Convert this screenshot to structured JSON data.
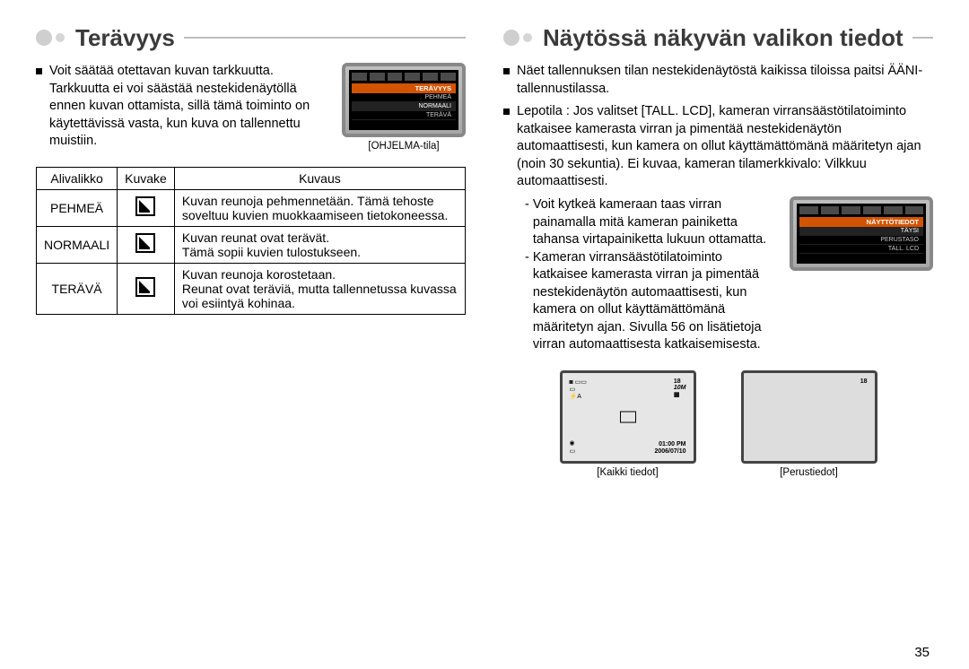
{
  "page_number": "35",
  "left": {
    "heading": "Terävyys",
    "intro": "Voit säätää otettavan kuvan tarkkuutta. Tarkkuutta ei voi säästää nestekidenäytöllä ennen kuvan ottamista, sillä tämä toiminto on käytettävissä vasta, kun kuva on tallennettu muistiin.",
    "lcd_caption": "[OHJELMA-tila]",
    "lcd_menu": {
      "title": "TERÄVYYS",
      "items": [
        "PEHMEÄ",
        "NORMAALI",
        "TERÄVÄ"
      ]
    },
    "table": {
      "headers": [
        "Alivalikko",
        "Kuvake",
        "Kuvaus"
      ],
      "rows": [
        {
          "name": "PEHMEÄ",
          "desc": "Kuvan reunoja pehmennetään. Tämä tehoste soveltuu kuvien muokkaamiseen tietokoneessa."
        },
        {
          "name": "NORMAALI",
          "desc": "Kuvan reunat ovat terävät.\nTämä sopii kuvien tulostukseen."
        },
        {
          "name": "TERÄVÄ",
          "desc": "Kuvan reunoja korostetaan.\nReunat ovat teräviä, mutta tallennetussa kuvassa voi esiintyä kohinaa."
        }
      ]
    }
  },
  "right": {
    "heading": "Näytössä näkyvän valikon tiedot",
    "bullet1": "Näet tallennuksen tilan nestekidenäytöstä kaikissa tiloissa paitsi ÄÄNI-tallennustilassa.",
    "bullet2": "Lepotila : Jos valitset [TALL. LCD], kameran virransäästötilatoiminto katkaisee kamerasta virran ja pimentää nestekidenäytön automaattisesti, kun kamera on ollut käyttämättömänä määritetyn ajan (noin 30 sekuntia). Ei kuvaa, kameran tilamerkkivalo: Vilkkuu automaattisesti.",
    "dash1": "Voit kytkeä kameraan taas virran painamalla mitä kameran painiketta tahansa virtapainiketta lukuun ottamatta.",
    "dash2": "Kameran virransäästötilatoiminto katkaisee kamerasta virran ja pimentää nestekidenäytön automaattisesti, kun kamera on ollut käyttämättömänä määritetyn ajan. Sivulla 56 on lisätietoja virran automaattisesta katkaisemisesta.",
    "lcd_menu": {
      "title": "NÄYTTÖTIEDOT",
      "items": [
        "TÄYSI",
        "PERUSTASO",
        "TALL. LCD"
      ]
    },
    "screens": {
      "left": {
        "caption": "[Kaikki tiedot]",
        "shots": "18",
        "size": "10M",
        "time": "01:00 PM",
        "date": "2006/07/10"
      },
      "right": {
        "caption": "[Perustiedot]",
        "shots": "18"
      }
    }
  }
}
